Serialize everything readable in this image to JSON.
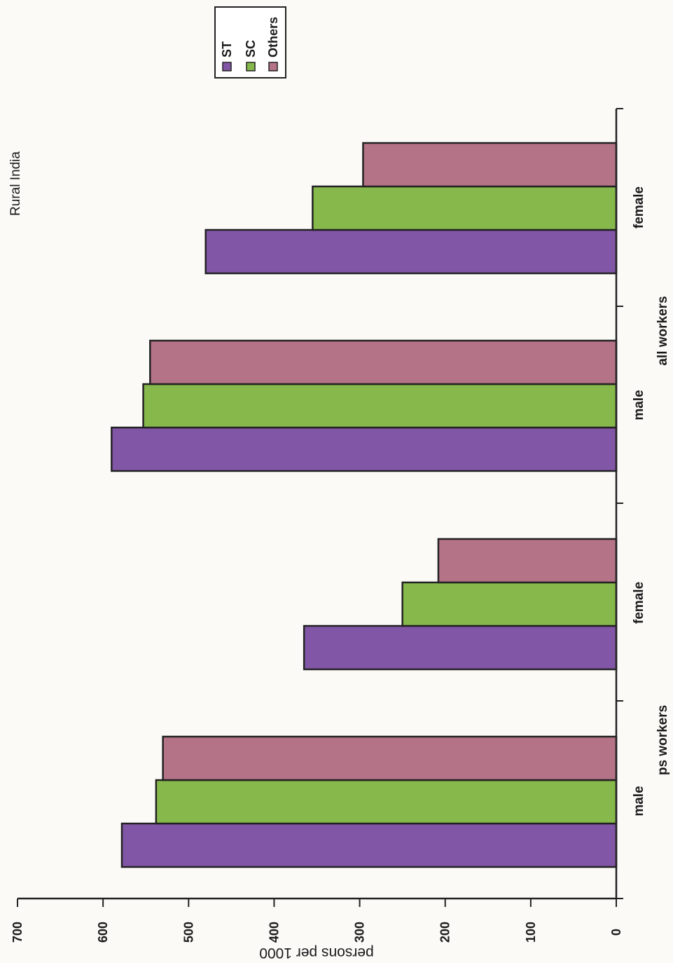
{
  "chart_data": {
    "type": "bar",
    "orientation": "horizontal",
    "title": "Rural India",
    "ylabel": "persons per 1000",
    "ylim": [
      0,
      700
    ],
    "yticks": [
      0,
      100,
      200,
      300,
      400,
      500,
      600,
      700
    ],
    "groups": [
      {
        "label": "ps workers",
        "categories": [
          "male",
          "female"
        ]
      },
      {
        "label": "all workers",
        "categories": [
          "male",
          "female"
        ]
      }
    ],
    "categories": [
      "male",
      "female",
      "male",
      "female"
    ],
    "series": [
      {
        "name": "ST",
        "values": [
          578,
          365,
          590,
          480
        ]
      },
      {
        "name": "SC",
        "values": [
          538,
          250,
          553,
          355
        ]
      },
      {
        "name": "Others",
        "values": [
          530,
          208,
          545,
          296
        ]
      }
    ],
    "legend": {
      "position": "top-right"
    },
    "grid": false,
    "colors": {
      "ST": "#8256a7",
      "SC": "#86b84c",
      "Others": "#b57387"
    }
  }
}
